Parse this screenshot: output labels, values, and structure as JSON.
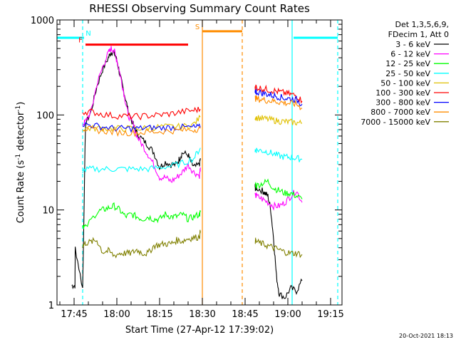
{
  "chart_data": {
    "type": "line",
    "title": "RHESSI Observing Summary Count Rates",
    "xlabel": "Start Time (27-Apr-12 17:39:02)",
    "ylabel": "Count Rate (s",
    "ylabel_sup1": "-1",
    "ylabel_mid": " detector",
    "ylabel_sup2": "-1",
    "ylabel_end": ")",
    "y_scale": "log",
    "ylim": [
      1,
      1000
    ],
    "xlim_minutes": [
      0,
      100
    ],
    "x_ticks": [
      {
        "label": "17:45",
        "minute": 6
      },
      {
        "label": "18:00",
        "minute": 21
      },
      {
        "label": "18:15",
        "minute": 36
      },
      {
        "label": "18:30",
        "minute": 51
      },
      {
        "label": "18:45",
        "minute": 66
      },
      {
        "label": "19:00",
        "minute": 81
      },
      {
        "label": "19:15",
        "minute": 96
      }
    ],
    "y_ticks": [
      {
        "label": "1",
        "value": 1
      },
      {
        "label": "10",
        "value": 10
      },
      {
        "label": "100",
        "value": 100
      },
      {
        "label": "1000",
        "value": 1000
      }
    ],
    "legend": {
      "header": [
        "Det 1,3,5,6,9,",
        "FDecim 1, Att 0"
      ],
      "position": "right"
    },
    "series": [
      {
        "name": "3 - 6 keV",
        "color": "#000000",
        "x": [
          5.2,
          6.3,
          6.4,
          9,
          10,
          12,
          14,
          16,
          18,
          19,
          20,
          21,
          22,
          23,
          24,
          25,
          27,
          28,
          30,
          32,
          34,
          36,
          38,
          40,
          42,
          43,
          44,
          46,
          47,
          48,
          50,
          50.3,
          69.5,
          69.6,
          70,
          72,
          73,
          74,
          75,
          76,
          77,
          78,
          80,
          82,
          84,
          86
        ],
        "y": [
          1.6,
          1.6,
          4,
          1.5,
          80,
          110,
          200,
          300,
          400,
          460,
          450,
          380,
          270,
          200,
          150,
          110,
          75,
          65,
          55,
          48,
          40,
          28,
          32,
          30,
          30,
          35,
          40,
          38,
          32,
          28,
          30,
          35,
          18,
          17,
          17,
          16,
          15,
          14,
          10,
          5,
          2,
          1.3,
          1.2,
          1.5,
          1.4,
          1.8
        ]
      },
      {
        "name": "6 - 12 keV",
        "color": "#ff00ff",
        "x": [
          9,
          10,
          12,
          14,
          16,
          18,
          19,
          20,
          21,
          22,
          23,
          24,
          25,
          27,
          28,
          30,
          32,
          34,
          36,
          38,
          40,
          42,
          44,
          46,
          48,
          50,
          50.3,
          69.5,
          70,
          72,
          74,
          76,
          78,
          80,
          82,
          84,
          86
        ],
        "y": [
          80,
          85,
          110,
          210,
          320,
          450,
          500,
          480,
          380,
          280,
          200,
          140,
          100,
          75,
          60,
          48,
          38,
          30,
          22,
          22,
          20,
          22,
          25,
          30,
          25,
          23,
          28,
          14,
          14,
          13,
          12,
          11,
          11,
          12,
          14,
          16,
          12
        ]
      },
      {
        "name": "12 - 25 keV",
        "color": "#00ff00",
        "x": [
          9,
          10,
          14,
          16,
          18,
          20,
          22,
          24,
          26,
          28,
          30,
          32,
          34,
          36,
          38,
          40,
          42,
          44,
          46,
          48,
          50,
          50.3,
          69.5,
          70,
          72,
          74,
          76,
          78,
          80,
          82,
          84,
          86
        ],
        "y": [
          7,
          6.5,
          9.5,
          10,
          10.5,
          11,
          10,
          8.5,
          9,
          8.5,
          8,
          8.5,
          8,
          8,
          9,
          8.5,
          8.5,
          9,
          8,
          8.5,
          9,
          9.5,
          19,
          18,
          19,
          20,
          17,
          16,
          15,
          15,
          14,
          13
        ]
      },
      {
        "name": "25 - 50 keV",
        "color": "#00ffff",
        "x": [
          9,
          12,
          16,
          20,
          24,
          28,
          32,
          36,
          40,
          44,
          48,
          50.3,
          69.5,
          70,
          72,
          74,
          76,
          78,
          80,
          82,
          84,
          86
        ],
        "y": [
          26,
          27,
          27,
          27,
          27,
          27,
          27,
          28,
          29,
          31,
          35,
          45,
          42,
          43,
          42,
          41,
          39,
          37,
          36,
          36,
          35,
          34
        ]
      },
      {
        "name": "50 - 100 keV",
        "color": "#e0c000",
        "x": [
          9,
          12,
          16,
          20,
          24,
          28,
          32,
          36,
          40,
          44,
          48,
          50.3,
          69.5,
          70,
          72,
          74,
          76,
          78,
          80,
          82,
          84,
          86
        ],
        "y": [
          72,
          72,
          73,
          72,
          72,
          72,
          73,
          75,
          75,
          75,
          80,
          95,
          95,
          94,
          92,
          90,
          88,
          86,
          85,
          84,
          83,
          82
        ]
      },
      {
        "name": "100 - 300 keV",
        "color": "#ff0000",
        "x": [
          9,
          12,
          16,
          20,
          24,
          28,
          32,
          36,
          40,
          44,
          48,
          50.3,
          69.5,
          70,
          72,
          74,
          76,
          78,
          80,
          82,
          84,
          86
        ],
        "y": [
          108,
          108,
          102,
          98,
          97,
          96,
          98,
          100,
          103,
          108,
          112,
          115,
          200,
          195,
          190,
          185,
          180,
          175,
          170,
          165,
          160,
          140
        ]
      },
      {
        "name": "300 - 800 keV",
        "color": "#0000ff",
        "x": [
          9,
          12,
          16,
          20,
          24,
          28,
          32,
          36,
          40,
          44,
          48,
          50.3,
          69.5,
          70,
          72,
          74,
          76,
          78,
          80,
          82,
          84,
          86
        ],
        "y": [
          80,
          78,
          75,
          72,
          72,
          72,
          73,
          73,
          74,
          74,
          74,
          74,
          180,
          175,
          170,
          165,
          160,
          155,
          150,
          148,
          145,
          130
        ]
      },
      {
        "name": "800 - 7000 keV",
        "color": "#ff8c00",
        "x": [
          9,
          12,
          16,
          20,
          24,
          28,
          32,
          36,
          40,
          44,
          48,
          50.3,
          69.5,
          70,
          72,
          74,
          76,
          78,
          80,
          82,
          84,
          86
        ],
        "y": [
          72,
          70,
          68,
          66,
          65,
          65,
          66,
          67,
          68,
          69,
          70,
          72,
          150,
          148,
          145,
          142,
          140,
          137,
          134,
          132,
          130,
          118
        ]
      },
      {
        "name": "7000 - 15000 keV",
        "color": "#808000",
        "x": [
          9,
          10,
          12,
          14,
          16,
          18,
          20,
          22,
          24,
          26,
          28,
          30,
          32,
          34,
          36,
          38,
          40,
          42,
          44,
          46,
          48,
          50,
          50.3,
          69.5,
          70,
          72,
          74,
          76,
          78,
          80,
          82,
          84,
          86
        ],
        "y": [
          4.2,
          4.5,
          4.6,
          4.8,
          3.6,
          3.7,
          3.3,
          3.5,
          3.5,
          3.5,
          3.8,
          3.5,
          3.5,
          4.2,
          4.3,
          4.4,
          4.4,
          4.8,
          4.7,
          5,
          5.1,
          5.2,
          6,
          4.8,
          4.6,
          4.4,
          4.2,
          4,
          3.8,
          3.6,
          3.5,
          3.5,
          3.4
        ]
      }
    ],
    "flag_bars": [
      {
        "label": "N",
        "color": "#00ffff",
        "segments": [
          [
            -1,
            9.5
          ],
          [
            83,
            98.5
          ]
        ],
        "value": 650
      },
      {
        "label": "F",
        "color": "#ff0000",
        "segments": [
          [
            10,
            46
          ]
        ],
        "value": 550
      },
      {
        "label": "S",
        "color": "#ff8c00",
        "segments": [
          [
            51,
            65
          ]
        ],
        "value": 760
      }
    ],
    "vertical_markers": [
      {
        "minute": 9,
        "color": "#00ffff",
        "style": "dashed"
      },
      {
        "minute": 51,
        "color": "#ff8c00",
        "style": "solid"
      },
      {
        "minute": 65,
        "color": "#ff8c00",
        "style": "dashed"
      },
      {
        "minute": 82.5,
        "color": "#00ffff",
        "style": "solid"
      },
      {
        "minute": 98.5,
        "color": "#00ffff",
        "style": "dashed"
      }
    ],
    "footer_timestamp": "20-Oct-2021 18:13"
  }
}
